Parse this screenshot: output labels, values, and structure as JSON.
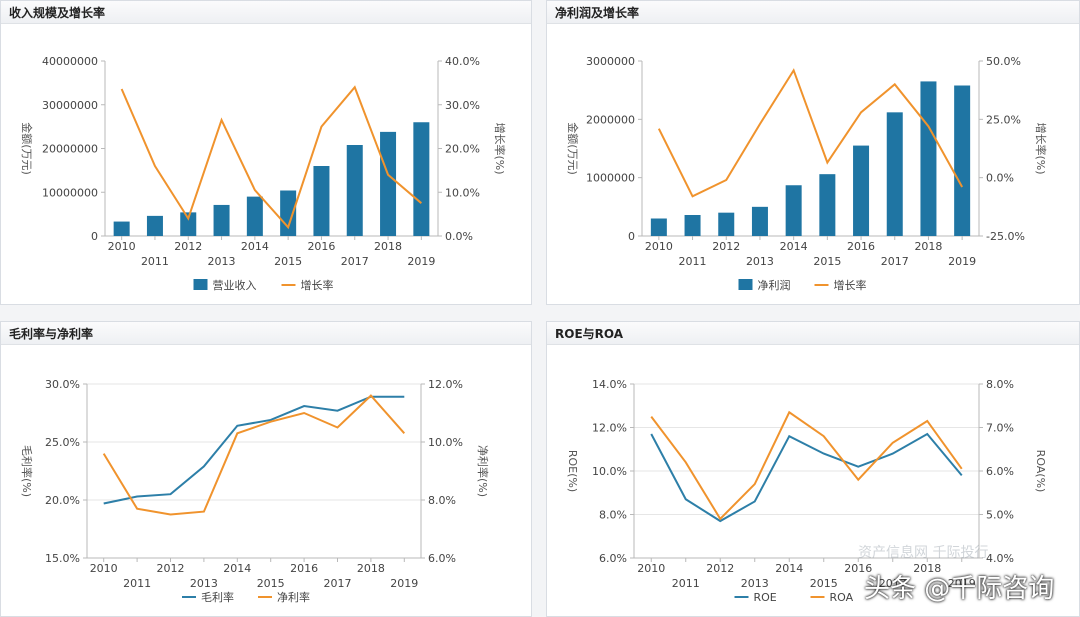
{
  "colors": {
    "bar": "#1f75a3",
    "blue_line": "#2d7fa8",
    "orange_line": "#f0932d",
    "grid": "#e6e6e6",
    "axis": "#b9b9b9",
    "text": "#444444"
  },
  "watermark": "资产信息网 千际投行",
  "brand": "头条 @千际咨询",
  "charts": [
    {
      "title": "收入规模及增长率",
      "chart_data": {
        "type": "bar",
        "categories": [
          "2010",
          "2011",
          "2012",
          "2013",
          "2014",
          "2015",
          "2016",
          "2017",
          "2018",
          "2019"
        ],
        "series": [
          {
            "name": "营业收入",
            "type": "bar",
            "axis": "left",
            "values": [
              3300000,
              4600000,
              5400000,
              7100000,
              9000000,
              10400000,
              16000000,
              20800000,
              23800000,
              26000000
            ]
          },
          {
            "name": "增长率",
            "type": "line",
            "axis": "right",
            "values": [
              33.6,
              16.0,
              4.0,
              26.5,
              10.5,
              2.0,
              25.0,
              34.0,
              14.0,
              7.5
            ]
          }
        ],
        "ylabel": "金额(万元)",
        "y2label": "增长率(%)",
        "ylim": [
          0,
          40000000
        ],
        "y2lim": [
          0,
          40
        ],
        "yticks": [
          "0",
          "10000000",
          "20000000",
          "30000000",
          "40000000"
        ],
        "y2ticks": [
          "0.0%",
          "10.0%",
          "20.0%",
          "30.0%",
          "40.0%"
        ],
        "legend": "bottom",
        "grid": false
      }
    },
    {
      "title": "净利润及增长率",
      "chart_data": {
        "type": "bar",
        "categories": [
          "2010",
          "2011",
          "2012",
          "2013",
          "2014",
          "2015",
          "2016",
          "2017",
          "2018",
          "2019"
        ],
        "series": [
          {
            "name": "净利润",
            "type": "bar",
            "axis": "left",
            "values": [
              300000,
              360000,
              400000,
              500000,
              870000,
              1060000,
              1550000,
              2120000,
              2650000,
              2580000
            ]
          },
          {
            "name": "增长率",
            "type": "line",
            "axis": "right",
            "values": [
              21.0,
              -8.0,
              -1.0,
              23.0,
              46.0,
              6.5,
              28.0,
              40.0,
              22.0,
              -4.0
            ]
          }
        ],
        "ylabel": "金额(万元)",
        "y2label": "增长率(%)",
        "ylim": [
          0,
          3000000
        ],
        "y2lim": [
          -25,
          50
        ],
        "yticks": [
          "0",
          "1000000",
          "2000000",
          "3000000"
        ],
        "y2ticks": [
          "-25.0%",
          "0.0%",
          "25.0%",
          "50.0%"
        ],
        "legend": "bottom",
        "grid": false
      }
    },
    {
      "title": "毛利率与净利率",
      "chart_data": {
        "type": "line",
        "categories": [
          "2010",
          "2011",
          "2012",
          "2013",
          "2014",
          "2015",
          "2016",
          "2017",
          "2018",
          "2019"
        ],
        "series": [
          {
            "name": "毛利率",
            "type": "line",
            "axis": "left",
            "color": "blue",
            "values": [
              19.7,
              20.3,
              20.5,
              22.9,
              26.4,
              26.9,
              28.1,
              27.7,
              28.9,
              28.9
            ]
          },
          {
            "name": "净利率",
            "type": "line",
            "axis": "right",
            "color": "orange",
            "values": [
              9.6,
              7.7,
              7.5,
              7.6,
              10.3,
              10.7,
              11.0,
              10.5,
              11.6,
              10.3
            ]
          }
        ],
        "ylabel": "毛利率(%)",
        "y2label": "净利率(%)",
        "ylim": [
          15,
          30
        ],
        "y2lim": [
          6,
          12
        ],
        "yticks": [
          "15.0%",
          "20.0%",
          "25.0%",
          "30.0%"
        ],
        "y2ticks": [
          "6.0%",
          "8.0%",
          "10.0%",
          "12.0%"
        ],
        "legend": "bottom",
        "grid": true
      }
    },
    {
      "title": "ROE与ROA",
      "chart_data": {
        "type": "line",
        "categories": [
          "2010",
          "2011",
          "2012",
          "2013",
          "2014",
          "2015",
          "2016",
          "2017",
          "2018",
          "2019"
        ],
        "series": [
          {
            "name": "ROE",
            "type": "line",
            "axis": "left",
            "color": "blue",
            "values": [
              11.7,
              8.7,
              7.7,
              8.6,
              11.6,
              10.8,
              10.2,
              10.8,
              11.7,
              9.8
            ]
          },
          {
            "name": "ROA",
            "type": "line",
            "axis": "right",
            "color": "orange",
            "values": [
              7.25,
              6.2,
              4.9,
              5.7,
              7.35,
              6.8,
              5.8,
              6.65,
              7.15,
              6.05
            ]
          }
        ],
        "ylabel": "ROE(%)",
        "y2label": "ROA(%)",
        "ylim": [
          6,
          14
        ],
        "y2lim": [
          4,
          8
        ],
        "yticks": [
          "6.0%",
          "8.0%",
          "10.0%",
          "12.0%",
          "14.0%"
        ],
        "y2ticks": [
          "4.0%",
          "5.0%",
          "6.0%",
          "7.0%",
          "8.0%"
        ],
        "legend": "bottom",
        "grid": true
      }
    }
  ]
}
